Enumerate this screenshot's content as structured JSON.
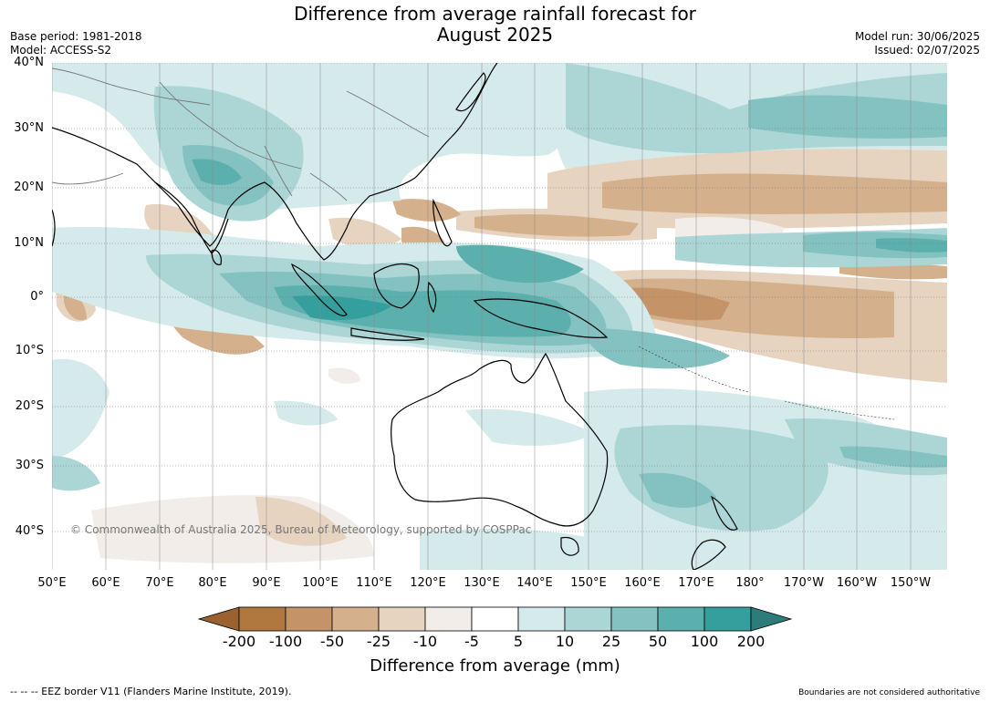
{
  "header": {
    "title_line1": "Difference from average rainfall forecast for",
    "title_line2": "August 2025",
    "base_period": "Base period: 1981-2018",
    "model": "Model: ACCESS-S2",
    "model_run": "Model run: 30/06/2025",
    "issued": "Issued: 02/07/2025"
  },
  "axes": {
    "lat_labels": [
      "40°N",
      "30°N",
      "20°N",
      "10°N",
      "0°",
      "10°S",
      "20°S",
      "30°S",
      "40°S"
    ],
    "lon_labels": [
      "50°E",
      "60°E",
      "70°E",
      "80°E",
      "90°E",
      "100°E",
      "110°E",
      "120°E",
      "130°E",
      "140°E",
      "150°E",
      "160°E",
      "170°E",
      "180°",
      "170°W",
      "160°W",
      "150°W"
    ]
  },
  "copyright": "© Commonwealth of Australia 2025, Bureau of Meteorology, supported by COSPPac",
  "colorbar": {
    "labels": [
      "-200",
      "-100",
      "-50",
      "-25",
      "-10",
      "-5",
      "5",
      "10",
      "25",
      "50",
      "100",
      "200"
    ],
    "colors": [
      "#9a6230",
      "#b0773f",
      "#c49468",
      "#d4b08c",
      "#e6d3c0",
      "#f2ede8",
      "#ffffff",
      "#d5eaea",
      "#abd6d5",
      "#84c2c1",
      "#5bafad",
      "#349f9d",
      "#2e7c7a"
    ],
    "title": "Difference from average (mm)"
  },
  "footer": {
    "eez": "--  --  -- EEZ border V11 (Flanders Marine Institute, 2019).",
    "boundaries_note": "Boundaries are not considered authoritative"
  }
}
